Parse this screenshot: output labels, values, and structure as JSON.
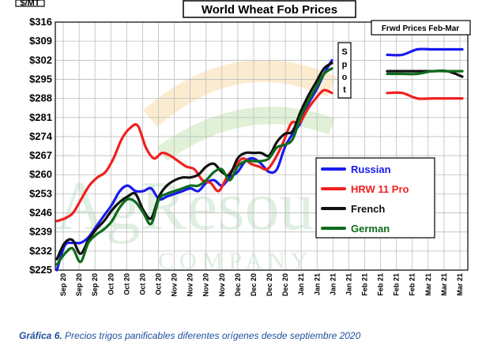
{
  "chart_data": {
    "type": "line",
    "title": "World Wheat Fob Prices",
    "unit_label": "$/MT",
    "ylim": [
      225,
      316
    ],
    "yticks": [
      "$225",
      "$232",
      "$239",
      "$246",
      "$253",
      "$260",
      "$267",
      "$274",
      "$281",
      "$288",
      "$295",
      "$302",
      "$309",
      "$316"
    ],
    "ytick_values": [
      225,
      232,
      239,
      246,
      253,
      260,
      267,
      274,
      281,
      288,
      295,
      302,
      309,
      316
    ],
    "x_labels": [
      "Sep 20",
      "Sep 20",
      "Sep 20",
      "Oct 20",
      "Oct 20",
      "Oct 20",
      "Oct 20",
      "Nov 20",
      "Nov 20",
      "Nov 20",
      "Nov 20",
      "Dec 20",
      "Dec 20",
      "Dec 20",
      "Dec 20",
      "Jan 21",
      "Jan 21",
      "Jan 21",
      "Jan 21",
      "Feb 21",
      "Feb 21",
      "Feb 21",
      "Feb 21",
      "Mar 21",
      "Mar 21",
      "Mar 21"
    ],
    "grid": true,
    "spot_label": [
      "S",
      "p",
      "o",
      "t"
    ],
    "forward_label": "Frwd Prices Feb-Mar",
    "legend_position": "right",
    "watermark": "AgResource Company",
    "series": [
      {
        "name": "Russian",
        "color": "#1a1af0",
        "values": [
          225,
          234,
          235,
          235,
          237,
          241,
          245,
          249,
          254,
          256,
          254,
          254,
          255,
          251,
          252,
          253,
          254,
          255,
          254,
          257,
          258,
          256,
          259,
          261,
          265,
          266,
          264,
          261,
          262,
          270,
          275,
          279,
          286,
          291,
          297,
          302
        ],
        "forward": [
          304,
          304,
          306,
          306,
          306,
          306
        ]
      },
      {
        "name": "HRW 11 Pro",
        "color": "#f02020",
        "values": [
          243,
          244,
          246,
          251,
          256,
          259,
          261,
          266,
          273,
          277,
          278,
          270,
          266,
          268,
          267,
          265,
          263,
          262,
          258,
          257,
          254,
          259,
          263,
          266,
          264,
          263,
          262,
          266,
          272,
          279,
          279,
          284,
          288,
          291,
          290
        ],
        "forward": [
          290,
          290,
          288,
          288,
          288,
          288
        ]
      },
      {
        "name": "French",
        "color": "#111111",
        "values": [
          229,
          235,
          236,
          231,
          236,
          240,
          243,
          247,
          250,
          252,
          253,
          247,
          244,
          252,
          256,
          258,
          259,
          259,
          260,
          263,
          264,
          261,
          260,
          266,
          268,
          268,
          268,
          267,
          272,
          275,
          276,
          283,
          289,
          294,
          299,
          301
        ],
        "forward": [
          298,
          298,
          298,
          298,
          298,
          296
        ]
      },
      {
        "name": "German",
        "color": "#0d6b1a",
        "values": [
          227,
          231,
          233,
          228,
          235,
          238,
          240,
          243,
          248,
          251,
          250,
          246,
          242,
          251,
          253,
          254,
          255,
          256,
          256,
          258,
          261,
          262,
          258,
          263,
          265,
          265,
          265,
          266,
          270,
          271,
          273,
          281,
          287,
          292,
          297,
          299
        ],
        "forward": [
          297,
          297,
          297,
          298,
          298,
          298
        ]
      }
    ]
  },
  "caption": {
    "prefix": "Gráfica 6.",
    "text": "Precios trigos panificables diferentes orígenes desde septiembre 2020"
  }
}
